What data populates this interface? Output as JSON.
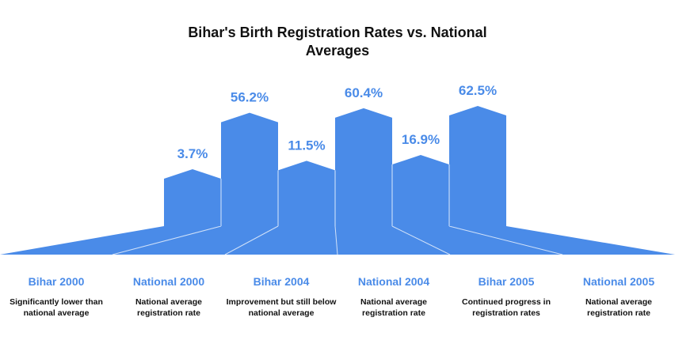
{
  "chart_data": {
    "type": "bar",
    "title_lines": [
      "Bihar's Birth Registration Rates vs. National",
      "Averages"
    ],
    "categories": [
      "Bihar 2000",
      "National 2000",
      "Bihar 2004",
      "National 2004",
      "Bihar 2005",
      "National 2005"
    ],
    "values": [
      3.7,
      56.2,
      11.5,
      60.4,
      16.9,
      62.5
    ],
    "value_labels": [
      "3.7%",
      "56.2%",
      "11.5%",
      "60.4%",
      "16.9%",
      "62.5%"
    ],
    "descriptions": [
      "Significantly lower than national average",
      "National average registration rate",
      "Improvement but still below national average",
      "National average registration rate",
      "Continued progress in registration rates",
      "National average registration rate"
    ],
    "bar_color": "#4a8be8",
    "label_color": "#4a8be8",
    "grid": false,
    "legend": "none"
  }
}
